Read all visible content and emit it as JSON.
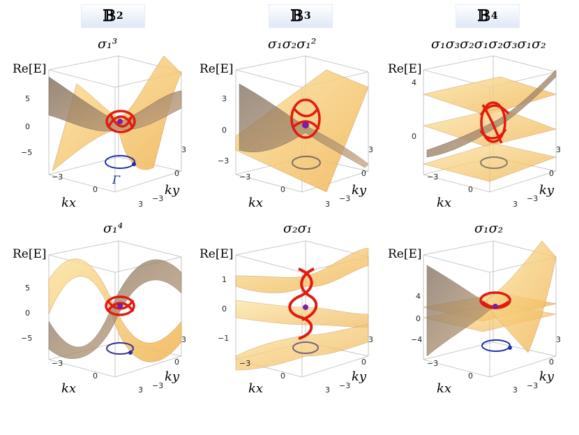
{
  "headers": [
    {
      "letter": "𝔹",
      "sub": "2"
    },
    {
      "letter": "𝔹",
      "sub": "3"
    },
    {
      "letter": "𝔹",
      "sub": "4"
    }
  ],
  "panels": [
    {
      "braid": "σ₁³",
      "yticks": [
        "5",
        "0",
        "−5"
      ],
      "loop_label": "Γ"
    },
    {
      "braid": "σ₁σ₂σ₁²",
      "yticks": [
        "3",
        "0",
        "−3"
      ]
    },
    {
      "braid": "σ₁σ₃σ₂σ₁σ₂σ₃σ₁σ₂",
      "yticks": [
        "4",
        "0"
      ]
    },
    {
      "braid": "σ₁⁴",
      "yticks": [
        "5",
        "0",
        "−5"
      ]
    },
    {
      "braid": "σ₂σ₁",
      "yticks": [
        "1",
        "0",
        "−1"
      ]
    },
    {
      "braid": "σ₁σ₂",
      "yticks": [
        "4",
        "0",
        "−4"
      ]
    }
  ],
  "axes": {
    "zlabel": "Re[E]",
    "xlabel": "kx",
    "ylabel": "ky",
    "kx_ticks": [
      "−3",
      "0",
      "3"
    ],
    "ky_ticks": [
      "3",
      "0",
      "−3"
    ]
  },
  "colors": {
    "surface": "#f6c66a",
    "surface_dark": "#8f7a63",
    "braid": "#e11b0f",
    "loop": "#1f2ea8",
    "header_bg": "#dde7f6"
  }
}
